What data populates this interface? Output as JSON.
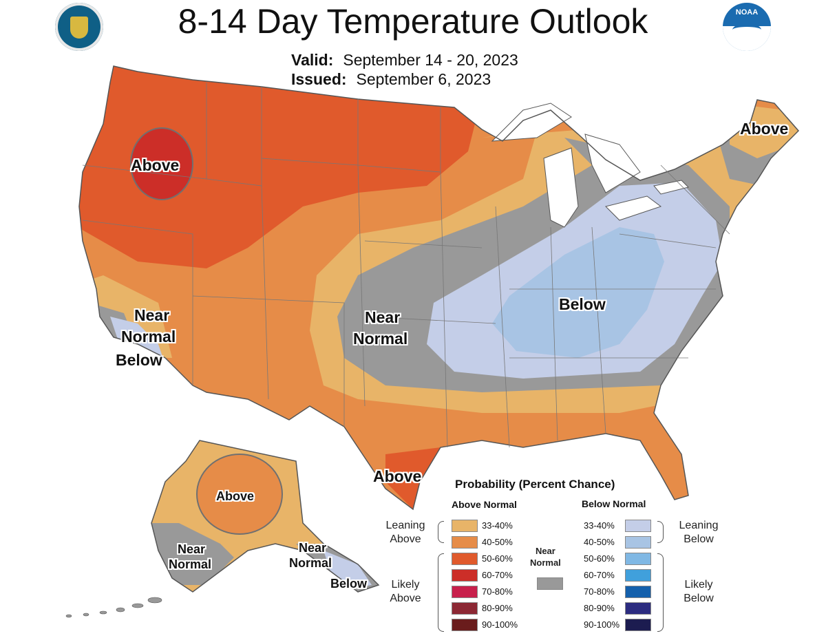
{
  "header": {
    "title": "8-14 Day Temperature Outlook",
    "valid_label": "Valid:",
    "valid_value": "September 14 - 20, 2023",
    "issued_label": "Issued:",
    "issued_value": "September 6, 2023"
  },
  "logos": {
    "left": "department-of-commerce-seal",
    "right": "noaa-logo",
    "noaa_text": "NOAA"
  },
  "map_labels": {
    "above_northwest": "Above",
    "above_northeast": "Above",
    "near_normal_west_1": "Near",
    "near_normal_west_2": "Normal",
    "below_west": "Below",
    "near_normal_central_1": "Near",
    "near_normal_central_2": "Normal",
    "below_east": "Below",
    "above_texas": "Above",
    "above_alaska": "Above",
    "near_normal_ak_west_1": "Near",
    "near_normal_ak_west_2": "Normal",
    "near_normal_ak_south_1": "Near",
    "near_normal_ak_south_2": "Normal",
    "below_ak_panhandle": "Below"
  },
  "legend": {
    "title": "Probability (Percent Chance)",
    "above_header": "Above Normal",
    "below_header": "Below Normal",
    "near_normal_1": "Near",
    "near_normal_2": "Normal",
    "leaning_above_1": "Leaning",
    "leaning_above_2": "Above",
    "likely_above_1": "Likely",
    "likely_above_2": "Above",
    "leaning_below_1": "Leaning",
    "leaning_below_2": "Below",
    "likely_below_1": "Likely",
    "likely_below_2": "Below",
    "above_ranges": [
      "33-40%",
      "40-50%",
      "50-60%",
      "60-70%",
      "70-80%",
      "80-90%",
      "90-100%"
    ],
    "below_ranges": [
      "33-40%",
      "40-50%",
      "50-60%",
      "60-70%",
      "70-80%",
      "80-90%",
      "90-100%"
    ],
    "above_colors": [
      "#e8b468",
      "#e68c48",
      "#e05a2c",
      "#cc2e28",
      "#c8204c",
      "#8c2834",
      "#6a1c1c"
    ],
    "below_colors": [
      "#c4cee8",
      "#a8c4e4",
      "#80b8e4",
      "#40a0dc",
      "#1460ac",
      "#2c2c80",
      "#1c1c50"
    ],
    "near_normal_color": "#999999"
  }
}
